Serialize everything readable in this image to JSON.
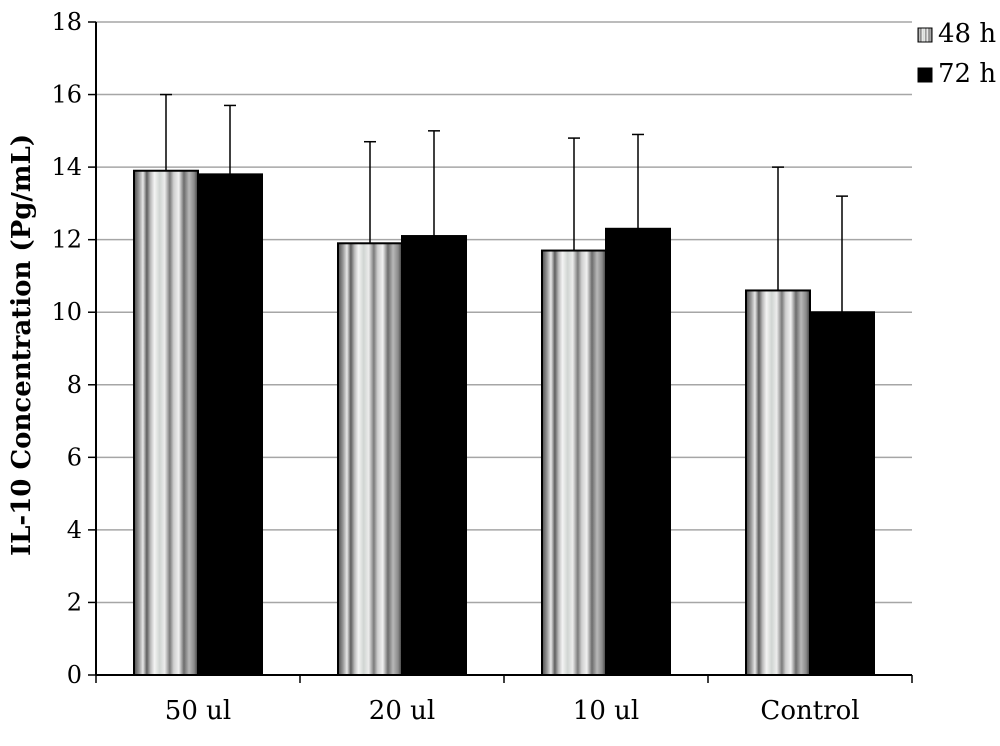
{
  "chart_data": {
    "type": "bar",
    "title": "",
    "xlabel": "",
    "ylabel": "IL-10 Concentration (Pg/mL)",
    "categories": [
      "50 ul",
      "20 ul",
      "10 ul",
      "Control"
    ],
    "series": [
      {
        "name": "48 h",
        "values": [
          13.9,
          11.9,
          11.7,
          10.6
        ],
        "error_upper": [
          16.0,
          14.7,
          14.8,
          14.0
        ],
        "pattern": "vertical-stripes"
      },
      {
        "name": "72 h",
        "values": [
          13.8,
          12.1,
          12.3,
          10.0
        ],
        "error_upper": [
          15.7,
          15.0,
          14.9,
          13.2
        ],
        "color": "#000000"
      }
    ],
    "ylim": [
      0,
      18
    ],
    "yticks": [
      0,
      2,
      4,
      6,
      8,
      10,
      12,
      14,
      16,
      18
    ],
    "grid": true,
    "legend_position": "top-right"
  }
}
